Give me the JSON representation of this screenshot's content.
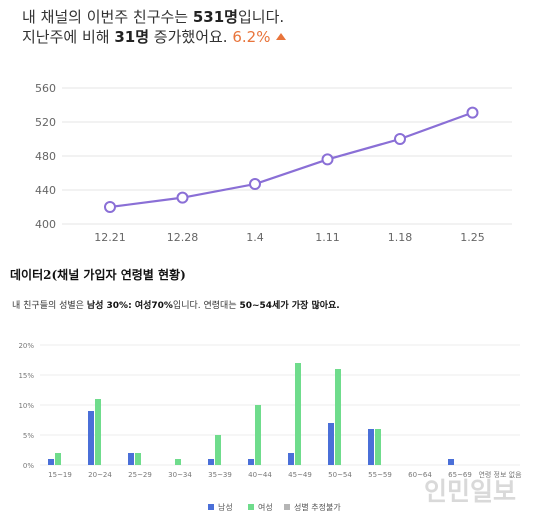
{
  "header": {
    "line1_prefix": "내 채널의 이번주 친구수는 ",
    "line1_value": "531명",
    "line1_suffix": "입니다.",
    "line2_prefix": "지난주에 비해 ",
    "line2_value": "31명",
    "line2_suffix": " 증가했어요. ",
    "line2_percent": "6.2%"
  },
  "section_title": "데이터2(채널 가입자 연령별 현황)",
  "summary": {
    "prefix": "내 친구들의 성별은 ",
    "male": "남성 30%",
    "sep": ": ",
    "female": "여성70%",
    "mid": "입니다. 연령대는 ",
    "age": "50~54세가 가장 많아요."
  },
  "watermark": "인민일보",
  "chart_data": [
    {
      "type": "line",
      "x": [
        "12.21",
        "12.28",
        "1.4",
        "1.11",
        "1.18",
        "1.25"
      ],
      "values": [
        420,
        431,
        447,
        476,
        500,
        531
      ],
      "ylim": [
        400,
        560
      ],
      "yticks": [
        400,
        440,
        480,
        520,
        560
      ],
      "grid": true,
      "color": "#8a6fd6"
    },
    {
      "type": "bar",
      "categories": [
        "15~19",
        "20~24",
        "25~29",
        "30~34",
        "35~39",
        "40~44",
        "45~49",
        "50~54",
        "55~59",
        "60~64",
        "65~69",
        "연령 정보 없음"
      ],
      "series": [
        {
          "name": "남성",
          "color": "#4a6fd8",
          "values": [
            1,
            9,
            2,
            0,
            1,
            1,
            2,
            7,
            6,
            0,
            1,
            0
          ]
        },
        {
          "name": "여성",
          "color": "#6fdc8c",
          "values": [
            2,
            11,
            2,
            1,
            5,
            10,
            17,
            16,
            6,
            0,
            0,
            0
          ]
        },
        {
          "name": "성별 추정불가",
          "color": "#b5b5b5",
          "values": [
            0,
            0,
            0,
            0,
            0,
            0,
            0,
            0,
            0,
            0,
            0,
            0
          ]
        }
      ],
      "ylim": [
        0,
        20
      ],
      "yticks": [
        "0%",
        "5%",
        "10%",
        "15%",
        "20%"
      ],
      "grid": true,
      "legend": "bottom"
    }
  ]
}
